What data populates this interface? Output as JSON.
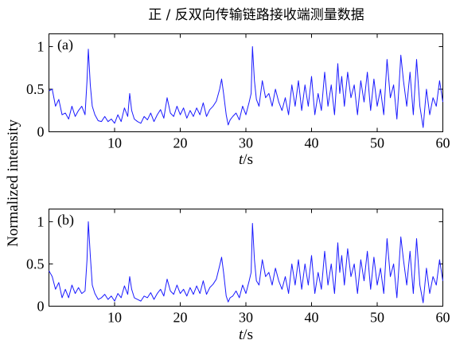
{
  "figure": {
    "title": "正 / 反双向传输链路接收端测量数据",
    "shared_ylabel": "Normalized intensity",
    "line_color": "#1a1aff"
  },
  "chart_data": [
    {
      "type": "line",
      "panel_label": "(a)",
      "xlabel_italic": "t",
      "xlabel_unit": "/s",
      "xlim": [
        0,
        60
      ],
      "ylim": [
        0,
        1.15
      ],
      "x_ticks": [
        10,
        20,
        30,
        40,
        50,
        60
      ],
      "x_tick_labels": [
        "10",
        "20",
        "30",
        "40",
        "50",
        "60"
      ],
      "y_ticks": [
        0,
        0.5,
        1
      ],
      "y_tick_labels": [
        "0",
        "0.5",
        "1"
      ],
      "grid": false,
      "series": [
        {
          "color": "#1a1aff",
          "x": [
            0,
            0.5,
            1,
            1.5,
            2,
            2.5,
            3,
            3.5,
            4,
            4.5,
            5,
            5.5,
            5.8,
            6,
            6.3,
            6.6,
            7,
            7.5,
            8,
            8.5,
            9,
            9.5,
            10,
            10.5,
            11,
            11.5,
            12,
            12.3,
            12.6,
            13,
            13.5,
            14,
            14.5,
            15,
            15.5,
            16,
            16.5,
            17,
            17.5,
            18,
            18.5,
            19,
            19.5,
            20,
            20.5,
            21,
            21.5,
            22,
            22.5,
            23,
            23.5,
            24,
            24.5,
            25,
            25.5,
            26,
            26.3,
            26.6,
            27,
            27.3,
            27.6,
            28,
            28.5,
            29,
            29.5,
            30,
            30.5,
            30.8,
            31,
            31.3,
            31.6,
            32,
            32.5,
            33,
            33.5,
            34,
            34.5,
            35,
            35.5,
            36,
            36.5,
            37,
            37.5,
            38,
            38.5,
            39,
            39.5,
            40,
            40.5,
            41,
            41.5,
            42,
            42.5,
            43,
            43.5,
            44,
            44.3,
            44.6,
            45,
            45.5,
            46,
            46.5,
            47,
            47.5,
            48,
            48.5,
            49,
            49.5,
            50,
            50.5,
            51,
            51.5,
            52,
            52.5,
            53,
            53.3,
            53.6,
            54,
            54.5,
            55,
            55.5,
            56,
            56.5,
            57,
            57.5,
            58,
            58.5,
            59,
            59.5,
            60
          ],
          "y": [
            0.48,
            0.5,
            0.3,
            0.38,
            0.2,
            0.22,
            0.15,
            0.3,
            0.18,
            0.25,
            0.3,
            0.2,
            0.6,
            0.97,
            0.55,
            0.3,
            0.2,
            0.13,
            0.12,
            0.18,
            0.12,
            0.15,
            0.1,
            0.2,
            0.12,
            0.28,
            0.18,
            0.45,
            0.25,
            0.15,
            0.12,
            0.1,
            0.18,
            0.14,
            0.22,
            0.12,
            0.2,
            0.26,
            0.16,
            0.4,
            0.22,
            0.18,
            0.3,
            0.2,
            0.28,
            0.16,
            0.25,
            0.18,
            0.28,
            0.2,
            0.34,
            0.18,
            0.26,
            0.3,
            0.36,
            0.5,
            0.62,
            0.45,
            0.2,
            0.08,
            0.14,
            0.18,
            0.22,
            0.14,
            0.3,
            0.2,
            0.35,
            0.45,
            1.0,
            0.6,
            0.38,
            0.3,
            0.6,
            0.4,
            0.45,
            0.3,
            0.5,
            0.35,
            0.25,
            0.4,
            0.2,
            0.55,
            0.3,
            0.6,
            0.25,
            0.55,
            0.3,
            0.65,
            0.2,
            0.45,
            0.25,
            0.7,
            0.3,
            0.55,
            0.2,
            0.8,
            0.45,
            0.65,
            0.3,
            0.7,
            0.4,
            0.55,
            0.2,
            0.6,
            0.35,
            0.7,
            0.25,
            0.62,
            0.3,
            0.5,
            0.2,
            0.85,
            0.4,
            0.55,
            0.15,
            0.5,
            0.9,
            0.6,
            0.3,
            0.7,
            0.2,
            0.85,
            0.3,
            0.05,
            0.5,
            0.2,
            0.4,
            0.3,
            0.6,
            0.35
          ]
        }
      ]
    },
    {
      "type": "line",
      "panel_label": "(b)",
      "xlabel_italic": "t",
      "xlabel_unit": "/s",
      "xlim": [
        0,
        60
      ],
      "ylim": [
        0,
        1.15
      ],
      "x_ticks": [
        10,
        20,
        30,
        40,
        50,
        60
      ],
      "x_tick_labels": [
        "10",
        "20",
        "30",
        "40",
        "50",
        "60"
      ],
      "y_ticks": [
        0,
        0.5,
        1
      ],
      "y_tick_labels": [
        "0",
        "0.5",
        "1"
      ],
      "grid": false,
      "series": [
        {
          "color": "#1a1aff",
          "x": [
            0,
            0.5,
            1,
            1.5,
            2,
            2.5,
            3,
            3.5,
            4,
            4.5,
            5,
            5.5,
            5.8,
            6,
            6.3,
            6.6,
            7,
            7.5,
            8,
            8.5,
            9,
            9.5,
            10,
            10.5,
            11,
            11.5,
            12,
            12.3,
            12.6,
            13,
            13.5,
            14,
            14.5,
            15,
            15.5,
            16,
            16.5,
            17,
            17.5,
            18,
            18.5,
            19,
            19.5,
            20,
            20.5,
            21,
            21.5,
            22,
            22.5,
            23,
            23.5,
            24,
            24.5,
            25,
            25.5,
            26,
            26.3,
            26.6,
            27,
            27.3,
            27.6,
            28,
            28.5,
            29,
            29.5,
            30,
            30.5,
            30.8,
            31,
            31.3,
            31.6,
            32,
            32.5,
            33,
            33.5,
            34,
            34.5,
            35,
            35.5,
            36,
            36.5,
            37,
            37.5,
            38,
            38.5,
            39,
            39.5,
            40,
            40.5,
            41,
            41.5,
            42,
            42.5,
            43,
            43.5,
            44,
            44.3,
            44.6,
            45,
            45.5,
            46,
            46.5,
            47,
            47.5,
            48,
            48.5,
            49,
            49.5,
            50,
            50.5,
            51,
            51.5,
            52,
            52.5,
            53,
            53.3,
            53.6,
            54,
            54.5,
            55,
            55.5,
            56,
            56.5,
            57,
            57.5,
            58,
            58.5,
            59,
            59.5,
            60
          ],
          "y": [
            0.42,
            0.35,
            0.2,
            0.28,
            0.1,
            0.2,
            0.1,
            0.25,
            0.15,
            0.22,
            0.15,
            0.18,
            0.55,
            1.0,
            0.6,
            0.25,
            0.15,
            0.08,
            0.1,
            0.14,
            0.08,
            0.12,
            0.06,
            0.15,
            0.1,
            0.24,
            0.14,
            0.35,
            0.2,
            0.1,
            0.08,
            0.06,
            0.12,
            0.1,
            0.16,
            0.08,
            0.15,
            0.2,
            0.12,
            0.32,
            0.18,
            0.14,
            0.25,
            0.15,
            0.2,
            0.12,
            0.22,
            0.14,
            0.24,
            0.15,
            0.3,
            0.14,
            0.22,
            0.26,
            0.32,
            0.48,
            0.58,
            0.4,
            0.12,
            0.05,
            0.1,
            0.12,
            0.18,
            0.1,
            0.25,
            0.15,
            0.3,
            0.4,
            0.98,
            0.55,
            0.3,
            0.25,
            0.55,
            0.35,
            0.4,
            0.25,
            0.45,
            0.3,
            0.2,
            0.35,
            0.15,
            0.5,
            0.25,
            0.55,
            0.2,
            0.5,
            0.25,
            0.6,
            0.15,
            0.4,
            0.2,
            0.65,
            0.25,
            0.5,
            0.15,
            0.75,
            0.4,
            0.6,
            0.25,
            0.68,
            0.35,
            0.5,
            0.15,
            0.55,
            0.3,
            0.65,
            0.2,
            0.58,
            0.25,
            0.45,
            0.15,
            0.8,
            0.35,
            0.5,
            0.1,
            0.45,
            0.82,
            0.55,
            0.25,
            0.65,
            0.15,
            0.8,
            0.25,
            0.04,
            0.45,
            0.15,
            0.35,
            0.25,
            0.55,
            0.3
          ]
        }
      ]
    }
  ]
}
